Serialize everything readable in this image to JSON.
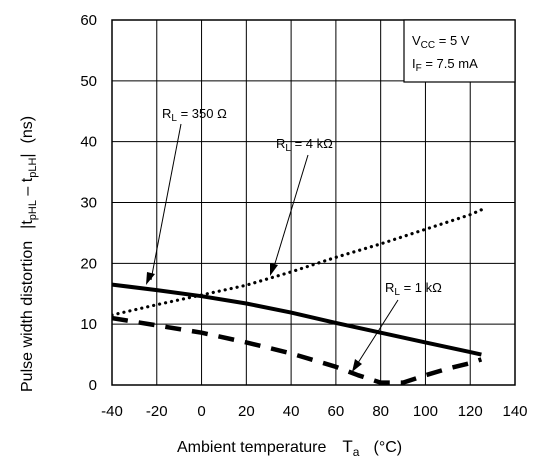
{
  "chart_data": {
    "type": "line",
    "xlabel": {
      "text": "Ambient temperature",
      "symbol": "T",
      "symbol_sub": "a",
      "unit": "(°C)"
    },
    "ylabel": {
      "text": "Pulse width distortion",
      "symbol": "|t",
      "sub1": "pHL",
      "minus": " – t",
      "sub2": "pLH",
      "bar": "|",
      "unit": "(ns)"
    },
    "xlim": [
      -40,
      140
    ],
    "ylim": [
      0,
      60
    ],
    "x_ticks": [
      -40,
      -20,
      0,
      20,
      40,
      60,
      80,
      100,
      120,
      140
    ],
    "y_ticks": [
      0,
      10,
      20,
      30,
      40,
      50,
      60
    ],
    "grid": true,
    "legend_box": {
      "line1": {
        "main": "V",
        "sub": "CC",
        "rest": " = 5 V"
      },
      "line2": {
        "main": "I",
        "sub": "F",
        "rest": " = 7.5 mA"
      }
    },
    "series": [
      {
        "name": "R_L = 350 Ω",
        "label": {
          "main": "R",
          "sub": "L",
          "rest": " = 350 Ω"
        },
        "style": "solid",
        "x": [
          -40,
          -20,
          0,
          20,
          40,
          60,
          80,
          100,
          120,
          125
        ],
        "y": [
          16.5,
          15.6,
          14.6,
          13.4,
          11.9,
          10.2,
          8.6,
          7.0,
          5.4,
          5.0
        ]
      },
      {
        "name": "R_L = 4 kΩ",
        "label": {
          "main": "R",
          "sub": "L",
          "rest": " = 4 kΩ"
        },
        "style": "dotted",
        "x": [
          -40,
          -20,
          0,
          20,
          40,
          60,
          80,
          100,
          120,
          125
        ],
        "y": [
          11.5,
          13.2,
          14.8,
          16.4,
          18.6,
          21.0,
          23.2,
          25.6,
          28.0,
          28.8
        ]
      },
      {
        "name": "R_L = 1 kΩ",
        "label": {
          "main": "R",
          "sub": "L",
          "rest": " = 1 kΩ"
        },
        "style": "dashed",
        "x": [
          -40,
          -20,
          0,
          20,
          40,
          60,
          70,
          80,
          90,
          100,
          110,
          120,
          125
        ],
        "y": [
          11.0,
          9.8,
          8.6,
          7.0,
          5.2,
          3.0,
          1.6,
          0.4,
          0.4,
          1.6,
          2.7,
          3.6,
          4.2
        ]
      }
    ]
  }
}
